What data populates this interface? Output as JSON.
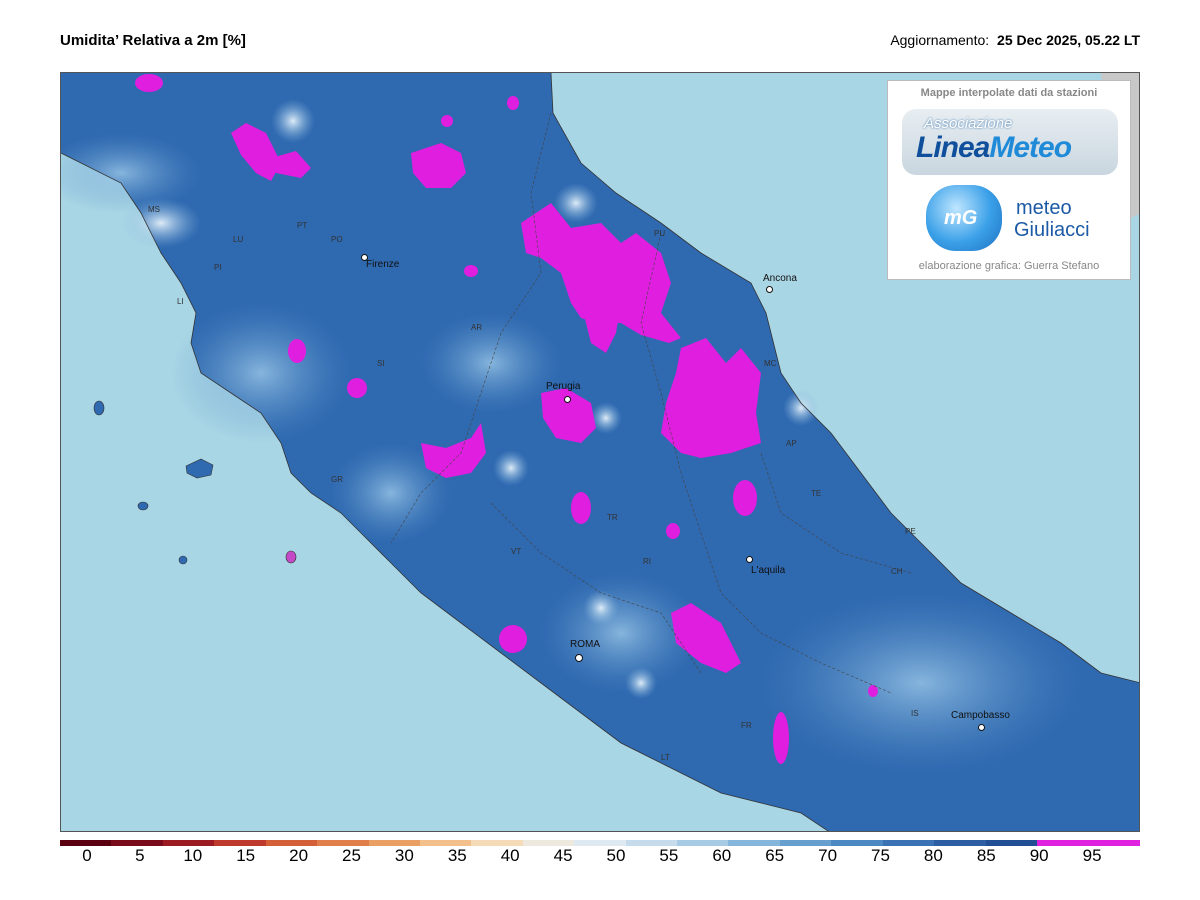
{
  "header": {
    "title": "Umidita’ Relativa a 2m [%]",
    "update_label": "Aggiornamento:",
    "update_value": "25 Dec 2025, 05.22 LT"
  },
  "credit": {
    "heading": "Mappe interpolate dati da stazioni",
    "logo1_small": "Associazione",
    "logo1_big_a": "Linea",
    "logo1_big_b": "Meteo",
    "logo2_letters": "mG",
    "logo2_line1": "meteo",
    "logo2_line2": "Giuliacci",
    "footer": "elaborazione grafica: Guerra Stefano"
  },
  "cities": [
    "Firenze",
    "Ancona",
    "Perugia",
    "L'aquila",
    "ROMA",
    "Campobasso"
  ],
  "provinces": [
    "MS",
    "LU",
    "PI",
    "LI",
    "PT",
    "PO",
    "AR",
    "SI",
    "GR",
    "VT",
    "TR",
    "RI",
    "MC",
    "AP",
    "TE",
    "PE",
    "CH",
    "LT",
    "FR",
    "IS",
    "PU"
  ],
  "legend": {
    "labels": [
      "0",
      "5",
      "10",
      "15",
      "20",
      "25",
      "30",
      "35",
      "40",
      "45",
      "50",
      "55",
      "60",
      "65",
      "70",
      "75",
      "80",
      "85",
      "90",
      "95"
    ],
    "colors": [
      "#5a0010",
      "#7a0b1a",
      "#9c1a22",
      "#bd3a2c",
      "#d4603a",
      "#e07e4c",
      "#eaa065",
      "#f3c08c",
      "#f5dbb8",
      "#eee9df",
      "#dfe9f1",
      "#c6dcec",
      "#a7cbe4",
      "#86b6db",
      "#679fcf",
      "#4c88c2",
      "#3a72b3",
      "#2d5ea4",
      "#224e93",
      "#e021e0"
    ]
  },
  "colors": {
    "sea": "#a9d6e5",
    "land_outside": "#ffffff",
    "humid_base": "#2f69b0",
    "saturated": "#e01ee0"
  }
}
